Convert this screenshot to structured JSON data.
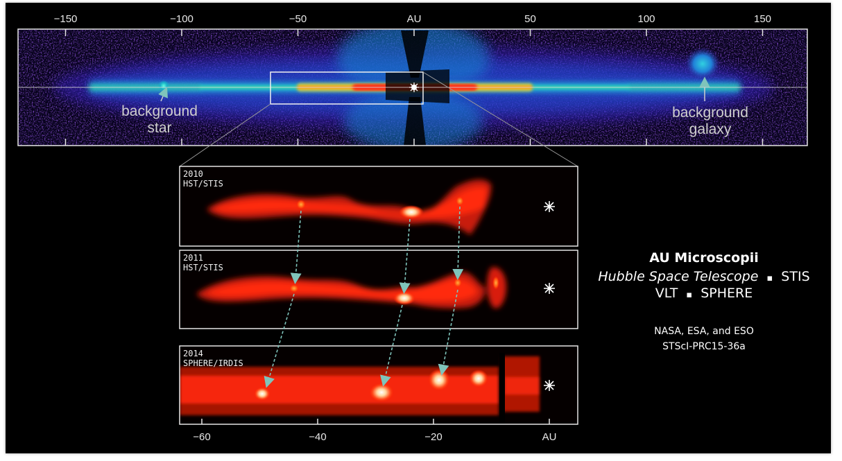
{
  "top_axis": {
    "ticks": [
      {
        "label": "−150",
        "value": -150
      },
      {
        "label": "−100",
        "value": -100
      },
      {
        "label": "−50",
        "value": -50
      },
      {
        "label": "AU",
        "value": 0
      },
      {
        "label": "50",
        "value": 50
      },
      {
        "label": "100",
        "value": 100
      },
      {
        "label": "150",
        "value": 150
      }
    ]
  },
  "annotations": {
    "background_star": [
      "background",
      "star"
    ],
    "background_galaxy": [
      "background",
      "galaxy"
    ]
  },
  "panels": [
    {
      "year": "2010",
      "instrument": "HST/STIS"
    },
    {
      "year": "2011",
      "instrument": "HST/STIS"
    },
    {
      "year": "2014",
      "instrument": "SPHERE/IRDIS"
    }
  ],
  "bottom_axis": {
    "ticks": [
      {
        "label": "−60",
        "value": -60
      },
      {
        "label": "−40",
        "value": -40
      },
      {
        "label": "−20",
        "value": -20
      },
      {
        "label": "AU",
        "value": 0
      }
    ]
  },
  "credits": {
    "title": "AU Microscopii",
    "line1_italic": "Hubble Space Telescope",
    "line1_sep": "▪",
    "line1_rest": "STIS",
    "line2_a": "VLT",
    "line2_sep": "▪",
    "line2_b": "SPHERE",
    "agencies": "NASA, ESA, and ESO",
    "release_id": "STScI-PRC15-36a"
  },
  "colors": {
    "frame": "#000000",
    "arrow": "#7fc4bb",
    "disk_core": "#ff2010",
    "disk_mid": "#ffe020",
    "disk_outer": "#18c8d8",
    "halo": "#4a2ad0"
  },
  "icons": [
    "star-marker-icon",
    "arrow-icon"
  ]
}
